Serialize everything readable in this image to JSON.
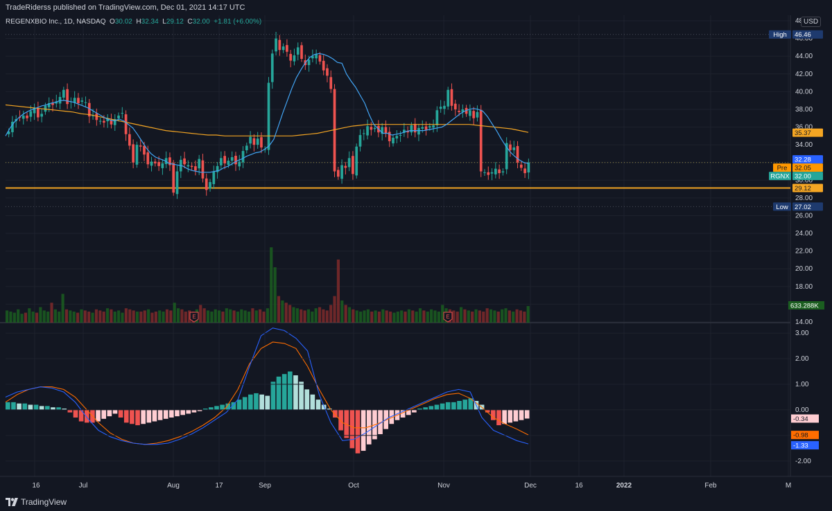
{
  "header": {
    "published_text": "TradeRiderss published on TradingView.com, Dec 01, 2021 14:17 UTC"
  },
  "legend": {
    "symbol": "REGENXBIO Inc., 1D, NASDAQ",
    "o_label": "O",
    "o_value": "30.02",
    "h_label": "H",
    "h_value": "32.34",
    "l_label": "L",
    "l_value": "29.12",
    "c_label": "C",
    "c_value": "32.00",
    "change": "+1.81 (+6.00%)"
  },
  "currency": "USD",
  "footer": {
    "brand": "TradingView"
  },
  "colors": {
    "up": "#26a69a",
    "down": "#ef5350",
    "ma_fast": "#2962ff",
    "ma_slow": "#f5a623",
    "macd_line": "#2962ff",
    "signal_line": "#ff6d00",
    "support": "#f5a623",
    "hist_up_strong": "#26a69a",
    "hist_up_weak": "#b2dfdb",
    "hist_down_strong": "#ef5350",
    "hist_down_weak": "#ffcdd2"
  },
  "chart_data": [
    {
      "type": "candlestick",
      "price_axis_ticks": [
        "48",
        "46.00",
        "44.00",
        "42.00",
        "40.00",
        "38.00",
        "36.00",
        "34.00",
        "32.00",
        "30.00",
        "28.00",
        "26.00",
        "24.00",
        "22.00",
        "20.00",
        "18.00",
        "16.00",
        "14.00"
      ],
      "x_tick_labels": [
        "16",
        "Jul",
        "Aug",
        "17",
        "Sep",
        "Oct",
        "Nov",
        "Dec",
        "16",
        "2022",
        "Feb",
        "M"
      ],
      "ylim": [
        14,
        48
      ],
      "price_labels": [
        {
          "name": "High",
          "value": "46.46"
        },
        {
          "name": "",
          "value": "35.37"
        },
        {
          "name": "",
          "value": "32.28"
        },
        {
          "name": "Pre",
          "value": "32.05"
        },
        {
          "name": "RGNX",
          "value": "32.00"
        },
        {
          "name": "",
          "value": "29.12"
        },
        {
          "name": "Low",
          "value": "27.02"
        }
      ],
      "volume_label": "633.288K",
      "earnings_markers": [
        "E",
        "E"
      ],
      "support_level": 29.12,
      "high": 46.46,
      "low": 27.02,
      "closes": [
        35.5,
        36.6,
        36.9,
        37.1,
        37.3,
        37.0,
        37.8,
        38.2,
        37.1,
        37.5,
        38.4,
        38.7,
        38.5,
        38.9,
        39.4,
        40.2,
        38.6,
        38.9,
        39.3,
        38.7,
        39.0,
        38.8,
        37.2,
        37.3,
        36.8,
        36.7,
        36.5,
        37.0,
        36.3,
        36.9,
        37.3,
        37.6,
        35.2,
        33.9,
        32.0,
        34.0,
        33.8,
        32.9,
        31.8,
        32.1,
        31.9,
        31.6,
        31.9,
        32.5,
        31.7,
        28.6,
        31.0,
        32.3,
        31.8,
        31.7,
        31.5,
        31.1,
        32.4,
        30.2,
        28.9,
        29.8,
        31.0,
        31.6,
        32.5,
        31.9,
        32.2,
        32.6,
        31.8,
        32.1,
        33.3,
        33.9,
        34.9,
        34.0,
        34.7,
        33.7,
        33.5,
        41.0,
        44.3,
        46.0,
        44.7,
        45.1,
        44.5,
        43.5,
        44.1,
        45.0,
        43.7,
        43.0,
        43.6,
        44.0,
        44.2,
        43.4,
        42.4,
        41.8,
        40.3,
        31.0,
        30.4,
        31.7,
        31.4,
        32.5,
        30.7,
        33.8,
        35.1,
        35.3,
        36.1,
        35.7,
        35.9,
        35.4,
        36.0,
        35.3,
        34.4,
        34.8,
        35.0,
        35.1,
        35.7,
        35.4,
        36.2,
        35.4,
        35.9,
        36.0,
        35.7,
        36.1,
        36.2,
        37.9,
        38.3,
        38.4,
        40.2,
        38.4,
        38.0,
        37.7,
        38.0,
        37.5,
        37.9,
        37.0,
        37.7,
        31.0,
        30.9,
        30.6,
        30.9,
        31.3,
        30.8,
        31.0,
        34.2,
        33.4,
        33.7,
        32.0,
        31.4,
        30.8,
        32.0
      ],
      "ma_fast": [
        35.0,
        35.9,
        36.6,
        37.1,
        37.5,
        37.8,
        38.0,
        38.2,
        38.4,
        38.5,
        38.7,
        38.8,
        39.0,
        39.0,
        38.9,
        38.8,
        38.6,
        38.4,
        38.2,
        37.9,
        37.6,
        37.3,
        37.0,
        36.8,
        36.7,
        36.9,
        36.7,
        36.3,
        35.9,
        35.2,
        34.4,
        33.6,
        33.0,
        32.6,
        32.4,
        32.2,
        31.9,
        31.8,
        31.7,
        31.6,
        31.3,
        31.1,
        31.0,
        30.9,
        30.9,
        30.9,
        31.0,
        31.1,
        31.4,
        31.6,
        31.9,
        32.2,
        32.4,
        32.7,
        32.9,
        33.1,
        33.2,
        33.5,
        33.9,
        34.6,
        36.1,
        37.6,
        39.0,
        40.4,
        41.6,
        42.5,
        43.3,
        43.9,
        44.2,
        44.3,
        44.2,
        44.0,
        43.7,
        43.3,
        43.2,
        42.0,
        41.2,
        40.5,
        39.6,
        38.7,
        37.4,
        36.3,
        35.8,
        35.3,
        35.3,
        35.1,
        35.2,
        35.3,
        35.5,
        35.6,
        35.6,
        35.6,
        35.6,
        35.7,
        35.8,
        35.9,
        36.0,
        36.3,
        36.7,
        37.1,
        37.5,
        37.8,
        38.0,
        38.1,
        38.0,
        37.8,
        37.2,
        36.4,
        35.6,
        34.7,
        33.9,
        33.2,
        32.7,
        32.3,
        32.0,
        31.9
      ],
      "ma_slow": [
        38.5,
        38.4,
        38.3,
        38.2,
        38.1,
        38.0,
        37.9,
        37.8,
        37.7,
        37.5,
        37.4,
        37.2,
        37.0,
        36.8,
        36.6,
        36.4,
        36.2,
        36.0,
        35.8,
        35.6,
        35.5,
        35.4,
        35.3,
        35.2,
        35.1,
        35.1,
        35.0,
        35.0,
        35.0,
        35.0,
        35.0,
        35.0,
        35.0,
        35.0,
        35.0,
        35.1,
        35.2,
        35.3,
        35.5,
        35.7,
        35.9,
        36.1,
        36.2,
        36.3,
        36.3,
        36.3,
        36.3,
        36.3,
        36.3,
        36.3,
        36.3,
        36.3,
        36.3,
        36.3,
        36.3,
        36.3,
        36.2,
        36.1,
        36.0,
        35.9,
        35.8,
        35.6,
        35.4
      ],
      "volumes": [
        1.1,
        1.0,
        0.9,
        1.2,
        0.8,
        0.9,
        1.3,
        1.0,
        0.9,
        1.4,
        1.1,
        1.0,
        1.8,
        1.2,
        1.0,
        2.6,
        1.2,
        1.1,
        1.0,
        0.9,
        1.2,
        1.1,
        1.0,
        0.9,
        1.2,
        1.1,
        1.0,
        1.3,
        1.2,
        1.0,
        1.1,
        0.9,
        1.3,
        1.2,
        1.1,
        1.0,
        1.0,
        1.1,
        1.2,
        0.9,
        1.0,
        1.1,
        1.0,
        1.2,
        1.1,
        1.8,
        1.3,
        1.2,
        1.0,
        1.1,
        1.0,
        1.2,
        1.6,
        1.3,
        1.1,
        1.0,
        1.2,
        1.1,
        1.0,
        1.3,
        1.2,
        1.1,
        1.0,
        1.2,
        1.1,
        1.0,
        1.3,
        1.1,
        1.2,
        1.0,
        1.3,
        6.8,
        5.0,
        2.4,
        2.0,
        1.8,
        1.6,
        1.4,
        1.3,
        1.2,
        1.1,
        1.2,
        1.0,
        1.3,
        1.4,
        1.2,
        1.1,
        1.6,
        2.4,
        5.7,
        2.0,
        1.6,
        1.4,
        1.2,
        1.1,
        1.0,
        1.1,
        1.2,
        1.0,
        1.1,
        1.0,
        1.2,
        1.1,
        1.0,
        0.9,
        1.0,
        1.1,
        1.0,
        1.2,
        1.1,
        1.0,
        1.3,
        1.1,
        1.0,
        1.2,
        1.1,
        1.0,
        1.6,
        1.3,
        1.2,
        1.1,
        1.0,
        1.4,
        1.2,
        1.1,
        1.0,
        1.2,
        1.1,
        1.0,
        1.3,
        1.2,
        1.1,
        1.0,
        1.2,
        1.3,
        1.1,
        1.0,
        1.2,
        1.1,
        1.0,
        1.5
      ]
    },
    {
      "type": "macd",
      "y_tick_labels": [
        "3.00",
        "2.00",
        "1.00",
        "0.00",
        "-1.00",
        "-2.00"
      ],
      "ylim": [
        -2.6,
        3.3
      ],
      "value_labels": [
        "-0.34",
        "-0.98",
        "-1.33"
      ],
      "histogram": [
        0.3,
        0.3,
        0.25,
        0.25,
        0.2,
        0.2,
        0.15,
        0.15,
        0.1,
        0.1,
        0.05,
        -0.1,
        -0.3,
        -0.45,
        -0.5,
        -0.5,
        -0.45,
        -0.35,
        -0.25,
        -0.15,
        -0.3,
        -0.5,
        -0.55,
        -0.6,
        -0.55,
        -0.5,
        -0.45,
        -0.4,
        -0.35,
        -0.3,
        -0.25,
        -0.2,
        -0.15,
        -0.1,
        -0.05,
        0.05,
        0.1,
        0.15,
        0.2,
        0.25,
        0.3,
        0.4,
        0.5,
        0.6,
        0.65,
        0.6,
        0.55,
        1.1,
        1.3,
        1.4,
        1.5,
        1.35,
        1.1,
        0.8,
        0.6,
        0.4,
        0.2,
        0.05,
        -0.3,
        -0.8,
        -1.1,
        -1.5,
        -1.7,
        -1.6,
        -1.35,
        -1.15,
        -0.95,
        -0.75,
        -0.55,
        -0.4,
        -0.3,
        -0.2,
        -0.1,
        0.05,
        0.1,
        0.15,
        0.2,
        0.25,
        0.3,
        0.3,
        0.35,
        0.4,
        0.45,
        0.35,
        0.2,
        -0.1,
        -0.4,
        -0.6,
        -0.55,
        -0.5,
        -0.45,
        -0.4,
        -0.34
      ],
      "macd_line": [
        0.5,
        0.7,
        0.8,
        0.9,
        0.85,
        0.7,
        0.3,
        -0.3,
        -0.8,
        -1.05,
        -1.2,
        -1.3,
        -1.35,
        -1.35,
        -1.3,
        -1.15,
        -0.95,
        -0.7,
        -0.4,
        -0.1,
        0.4,
        1.7,
        2.9,
        3.2,
        3.1,
        2.8,
        2.3,
        0.6,
        -0.5,
        -1.2,
        -1.15,
        -0.9,
        -0.6,
        -0.3,
        -0.1,
        0.1,
        0.3,
        0.5,
        0.7,
        0.8,
        0.7,
        -0.3,
        -0.8,
        -1.0,
        -1.2,
        -1.33
      ],
      "signal_line": [
        0.3,
        0.6,
        0.8,
        0.9,
        0.9,
        0.8,
        0.5,
        0.0,
        -0.5,
        -0.9,
        -1.15,
        -1.3,
        -1.35,
        -1.3,
        -1.2,
        -1.05,
        -0.85,
        -0.6,
        -0.3,
        0.1,
        0.8,
        1.8,
        2.4,
        2.65,
        2.6,
        2.4,
        1.7,
        0.8,
        0.0,
        -0.5,
        -0.7,
        -0.7,
        -0.55,
        -0.35,
        -0.15,
        0.05,
        0.25,
        0.45,
        0.6,
        0.65,
        0.45,
        0.1,
        -0.3,
        -0.55,
        -0.75,
        -0.98
      ]
    }
  ]
}
